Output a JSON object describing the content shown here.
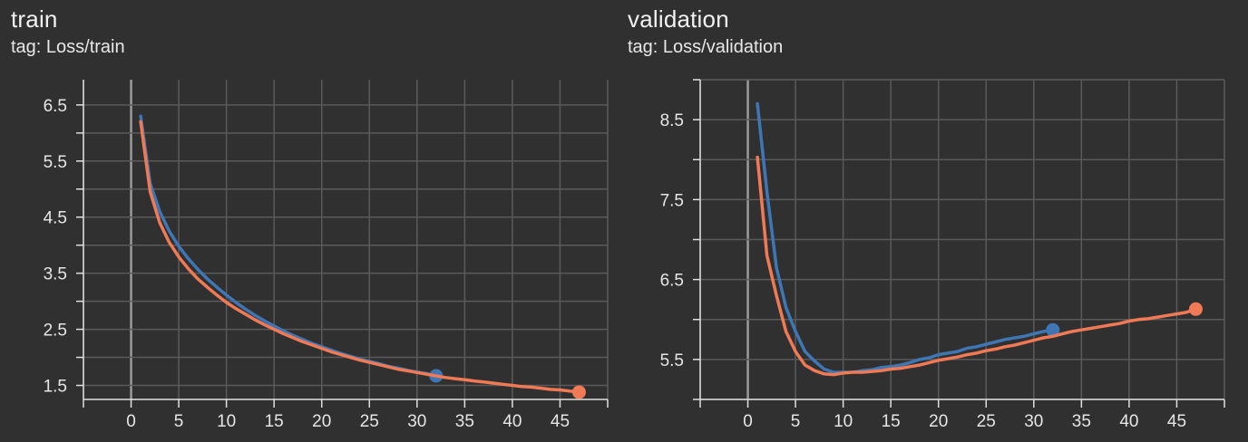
{
  "panels": [
    {
      "title": "train",
      "tag": "tag: Loss/train"
    },
    {
      "title": "validation",
      "tag": "tag: Loss/validation"
    }
  ],
  "colors": {
    "background": "#303030",
    "grid": "#5a5a5a",
    "axis": "#e0e0e0",
    "zero_line": "#9a9a9a",
    "series_blue": "#3f76b4",
    "series_orange": "#ef7a55"
  },
  "chart_data": [
    {
      "type": "line",
      "title": "train",
      "subtitle": "tag: Loss/train",
      "xlim": [
        -5,
        50
      ],
      "ylim": [
        1.25,
        6.95
      ],
      "xticks": [
        0,
        5,
        10,
        15,
        20,
        25,
        30,
        35,
        40,
        45
      ],
      "yticks": [
        1.5,
        2.5,
        3.5,
        4.5,
        5.5,
        6.5
      ],
      "grid": true,
      "series": [
        {
          "color": "#3f76b4",
          "x": [
            1,
            2,
            3,
            4,
            5,
            6,
            7,
            8,
            9,
            10,
            11,
            12,
            13,
            14,
            15,
            16,
            17,
            18,
            19,
            20,
            21,
            22,
            23,
            24,
            25,
            26,
            27,
            28,
            29,
            30,
            31,
            32
          ],
          "y": [
            6.3,
            5.1,
            4.6,
            4.25,
            3.98,
            3.76,
            3.57,
            3.4,
            3.25,
            3.11,
            2.98,
            2.86,
            2.75,
            2.65,
            2.56,
            2.47,
            2.39,
            2.32,
            2.25,
            2.19,
            2.13,
            2.07,
            2.02,
            1.97,
            1.93,
            1.89,
            1.84,
            1.81,
            1.77,
            1.74,
            1.71,
            1.67
          ]
        },
        {
          "color": "#ef7a55",
          "x": [
            1,
            2,
            3,
            4,
            5,
            6,
            7,
            8,
            9,
            10,
            11,
            12,
            13,
            14,
            15,
            16,
            17,
            18,
            19,
            20,
            21,
            22,
            23,
            24,
            25,
            26,
            27,
            28,
            29,
            30,
            31,
            32,
            33,
            34,
            35,
            36,
            37,
            38,
            39,
            40,
            41,
            42,
            43,
            44,
            45,
            46,
            47
          ],
          "y": [
            6.2,
            4.95,
            4.4,
            4.05,
            3.79,
            3.58,
            3.4,
            3.25,
            3.11,
            2.98,
            2.87,
            2.77,
            2.67,
            2.58,
            2.5,
            2.42,
            2.35,
            2.28,
            2.22,
            2.16,
            2.1,
            2.05,
            2.0,
            1.95,
            1.91,
            1.87,
            1.83,
            1.79,
            1.76,
            1.73,
            1.7,
            1.67,
            1.64,
            1.62,
            1.6,
            1.58,
            1.56,
            1.54,
            1.52,
            1.5,
            1.48,
            1.47,
            1.45,
            1.43,
            1.42,
            1.4,
            1.38
          ]
        }
      ]
    },
    {
      "type": "line",
      "title": "validation",
      "subtitle": "tag: Loss/validation",
      "xlim": [
        -5,
        50
      ],
      "ylim": [
        5.0,
        9.0
      ],
      "xticks": [
        0,
        5,
        10,
        15,
        20,
        25,
        30,
        35,
        40,
        45
      ],
      "yticks": [
        5.5,
        6.5,
        7.5,
        8.5
      ],
      "grid": true,
      "series": [
        {
          "color": "#3f76b4",
          "x": [
            1,
            2,
            3,
            4,
            5,
            6,
            7,
            8,
            9,
            10,
            11,
            12,
            13,
            14,
            15,
            16,
            17,
            18,
            19,
            20,
            21,
            22,
            23,
            24,
            25,
            26,
            27,
            28,
            29,
            30,
            31,
            32
          ],
          "y": [
            8.7,
            7.6,
            6.65,
            6.15,
            5.85,
            5.6,
            5.48,
            5.38,
            5.34,
            5.34,
            5.34,
            5.36,
            5.37,
            5.4,
            5.41,
            5.43,
            5.46,
            5.5,
            5.52,
            5.56,
            5.58,
            5.6,
            5.64,
            5.66,
            5.69,
            5.72,
            5.75,
            5.77,
            5.79,
            5.82,
            5.85,
            5.87
          ]
        },
        {
          "color": "#ef7a55",
          "x": [
            1,
            2,
            3,
            4,
            5,
            6,
            7,
            8,
            9,
            10,
            11,
            12,
            13,
            14,
            15,
            16,
            17,
            18,
            19,
            20,
            21,
            22,
            23,
            24,
            25,
            26,
            27,
            28,
            29,
            30,
            31,
            32,
            33,
            34,
            35,
            36,
            37,
            38,
            39,
            40,
            41,
            42,
            43,
            44,
            45,
            46,
            47
          ],
          "y": [
            8.03,
            6.8,
            6.3,
            5.85,
            5.6,
            5.43,
            5.36,
            5.32,
            5.31,
            5.33,
            5.34,
            5.34,
            5.35,
            5.36,
            5.38,
            5.39,
            5.41,
            5.43,
            5.46,
            5.49,
            5.51,
            5.53,
            5.56,
            5.58,
            5.61,
            5.63,
            5.66,
            5.68,
            5.71,
            5.74,
            5.77,
            5.79,
            5.82,
            5.85,
            5.87,
            5.89,
            5.91,
            5.93,
            5.95,
            5.98,
            6.0,
            6.01,
            6.03,
            6.05,
            6.07,
            6.09,
            6.13
          ]
        }
      ]
    }
  ]
}
